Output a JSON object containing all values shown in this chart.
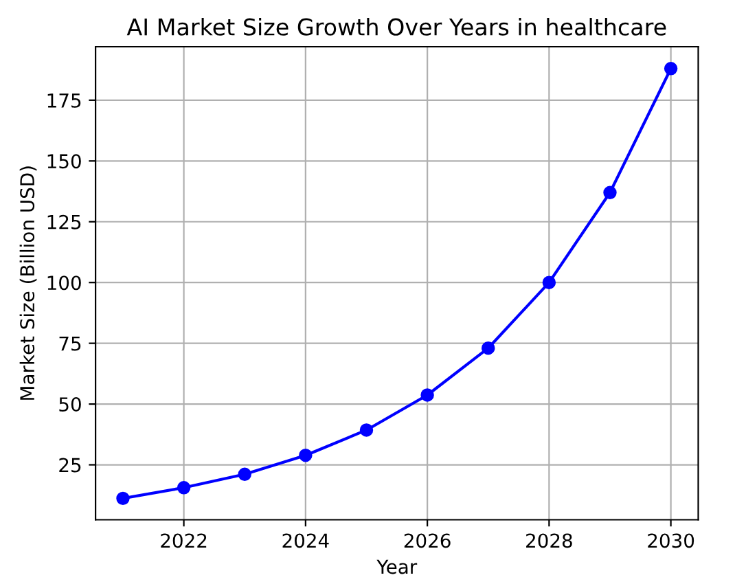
{
  "chart_data": {
    "type": "line",
    "title": "AI Market Size Growth Over Years in healthcare",
    "xlabel": "Year",
    "ylabel": "Market Size (Billion USD)",
    "x": [
      2021,
      2022,
      2023,
      2024,
      2025,
      2026,
      2027,
      2028,
      2029,
      2030
    ],
    "series": [
      {
        "color": "#0000ff",
        "values": [
          11.2,
          15.6,
          21.1,
          28.9,
          39.3,
          53.7,
          73,
          100,
          137,
          188
        ]
      }
    ],
    "xlim": [
      2020.55,
      2030.45
    ],
    "xticks": [
      2022,
      2024,
      2026,
      2028,
      2030
    ],
    "ylim": [
      2.4,
      197
    ],
    "yticks": [
      25,
      50,
      75,
      100,
      125,
      150,
      175
    ],
    "grid": true,
    "marker": "circle",
    "line_style": "solid"
  }
}
